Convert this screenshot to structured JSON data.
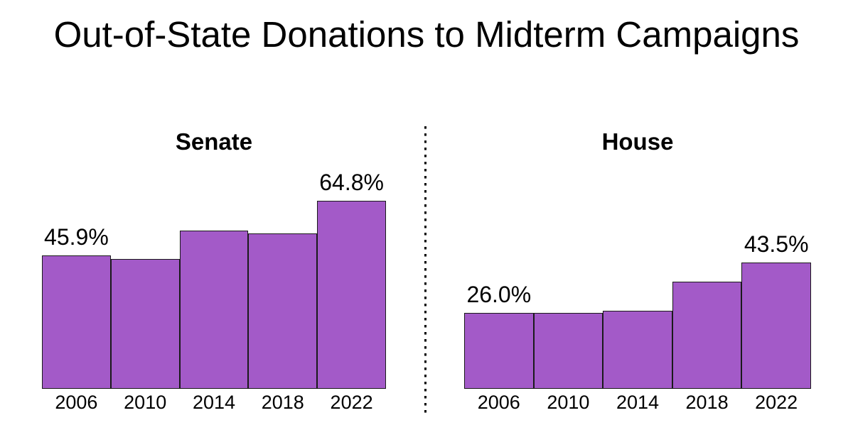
{
  "title": "Out-of-State Donations to Midterm Campaigns",
  "colors": {
    "background": "#FFFFFF",
    "text": "#000000",
    "bar_fill": "#A35AC8",
    "bar_edge": "#1A1A1A",
    "divider": "#000000"
  },
  "divider": {
    "style": "vertical dotted line between panels"
  },
  "chart_data": [
    {
      "type": "bar",
      "title": "Senate",
      "categories": [
        "2006",
        "2010",
        "2014",
        "2018",
        "2022"
      ],
      "values": [
        45.9,
        44.7,
        54.5,
        53.5,
        64.8
      ],
      "unit": "%",
      "data_labels": [
        {
          "bar_index": 0,
          "label": "45.9%"
        },
        {
          "bar_index": 4,
          "label": "64.8%"
        }
      ],
      "xlabel": "",
      "ylabel": "",
      "ylim": [
        0,
        71
      ],
      "grid": false,
      "axes_visible": false,
      "legend": "none"
    },
    {
      "type": "bar",
      "title": "House",
      "categories": [
        "2006",
        "2010",
        "2014",
        "2018",
        "2022"
      ],
      "values": [
        26.0,
        26.1,
        26.9,
        36.9,
        43.5
      ],
      "unit": "%",
      "data_labels": [
        {
          "bar_index": 0,
          "label": "26.0%"
        },
        {
          "bar_index": 4,
          "label": "43.5%"
        }
      ],
      "xlabel": "",
      "ylabel": "",
      "ylim": [
        0,
        71
      ],
      "grid": false,
      "axes_visible": false,
      "legend": "none"
    }
  ]
}
